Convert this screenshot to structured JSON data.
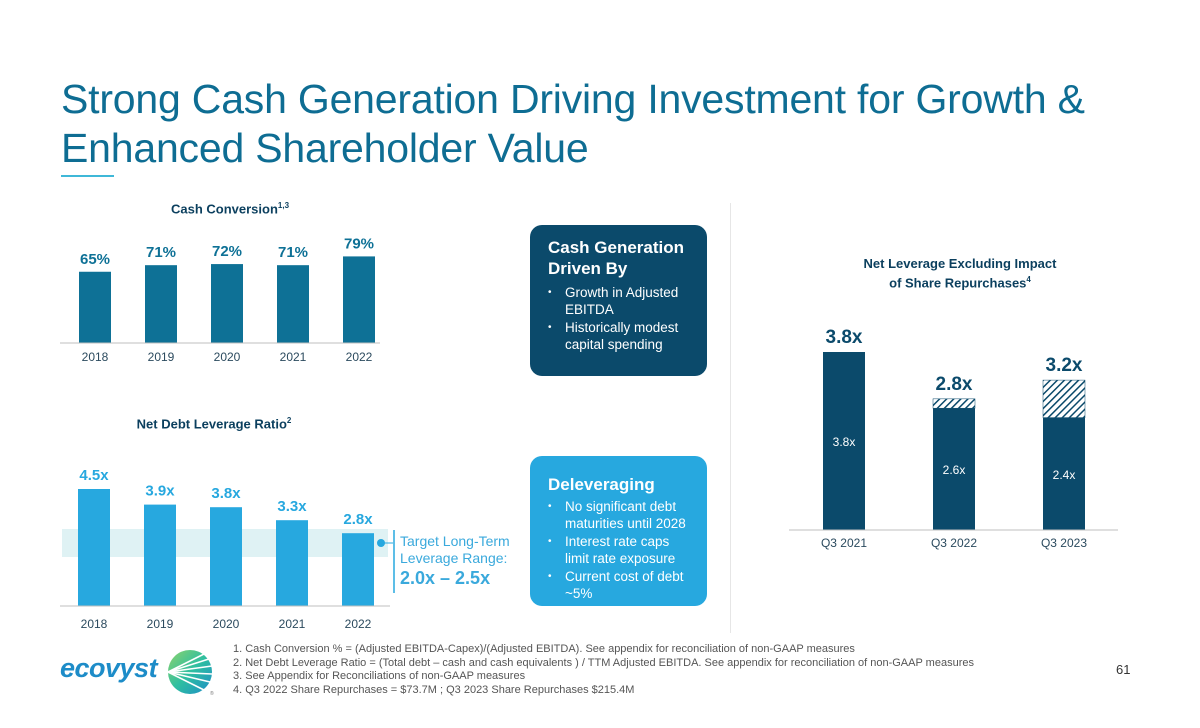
{
  "title": "Strong Cash Generation Driving Investment for Growth & Enhanced Shareholder Value",
  "colors": {
    "title": "#0e6d93",
    "dark_navy": "#0b4a6b",
    "teal_bar": "#0e7196",
    "light_blue": "#27a8df",
    "target_band": "#dff2f4"
  },
  "chart_data": [
    {
      "type": "bar",
      "title": "Cash Conversion",
      "title_superscript": "1,3",
      "categories": [
        "2018",
        "2019",
        "2020",
        "2021",
        "2022"
      ],
      "values": [
        65,
        71,
        72,
        71,
        79
      ],
      "labels": [
        "65%",
        "71%",
        "72%",
        "71%",
        "79%"
      ],
      "unit": "%",
      "xlabel": "",
      "ylabel": "",
      "ylim": [
        0,
        100
      ],
      "grid": false
    },
    {
      "type": "bar",
      "title": "Net Debt Leverage Ratio",
      "title_superscript": "2",
      "categories": [
        "2018",
        "2019",
        "2020",
        "2021",
        "2022"
      ],
      "values": [
        4.5,
        3.9,
        3.8,
        3.3,
        2.8
      ],
      "labels": [
        "4.5x",
        "3.9x",
        "3.8x",
        "3.3x",
        "2.8x"
      ],
      "unit": "x",
      "ylim": [
        0,
        5.5
      ],
      "grid": false,
      "target_band": {
        "range": [
          2.0,
          2.5
        ],
        "label_line1": "Target Long-Term",
        "label_line2": "Leverage Range:",
        "label_value": "2.0x – 2.5x"
      }
    },
    {
      "type": "bar",
      "stacked": true,
      "title_line1": "Net Leverage Excluding Impact",
      "title_line2": "of Share Repurchases",
      "title_superscript": "4",
      "categories": [
        "Q3 2021",
        "Q3 2022",
        "Q3 2023"
      ],
      "series": [
        {
          "name": "Net leverage excluding share repurchases",
          "values": [
            3.8,
            2.6,
            2.4
          ],
          "labels": [
            "3.8x",
            "2.6x",
            "2.4x"
          ]
        },
        {
          "name": "Impact of share repurchases",
          "values": [
            0,
            0.2,
            0.8
          ],
          "pattern": "hatched"
        }
      ],
      "totals": [
        3.8,
        2.8,
        3.2
      ],
      "total_labels": [
        "3.8x",
        "2.8x",
        "3.2x"
      ],
      "ylim": [
        0,
        4.5
      ],
      "grid": false
    }
  ],
  "callouts": {
    "cash_generation": {
      "heading": "Cash Generation Driven By",
      "bullets": [
        "Growth in Adjusted EBITDA",
        "Historically modest capital spending"
      ]
    },
    "deleveraging": {
      "heading": "Deleveraging",
      "bullets": [
        "No significant debt maturities until 2028",
        "Interest rate caps limit rate exposure",
        "Current cost of debt ~5%"
      ]
    }
  },
  "footnotes": [
    "1. Cash Conversion % = (Adjusted EBITDA-Capex)/(Adjusted EBITDA). See appendix for reconciliation of non-GAAP measures",
    "2. Net Debt Leverage Ratio = (Total debt – cash and cash equivalents ) / TTM Adjusted EBITDA. See appendix for reconciliation of non-GAAP measures",
    "3. See Appendix for Reconciliations of non-GAAP measures",
    "4. Q3 2022 Share Repurchases = $73.7M ; Q3 2023 Share Repurchases $215.4M"
  ],
  "logo": {
    "text": "ecovyst",
    "icon": "sunburst-globe-icon"
  },
  "page_number": "61"
}
